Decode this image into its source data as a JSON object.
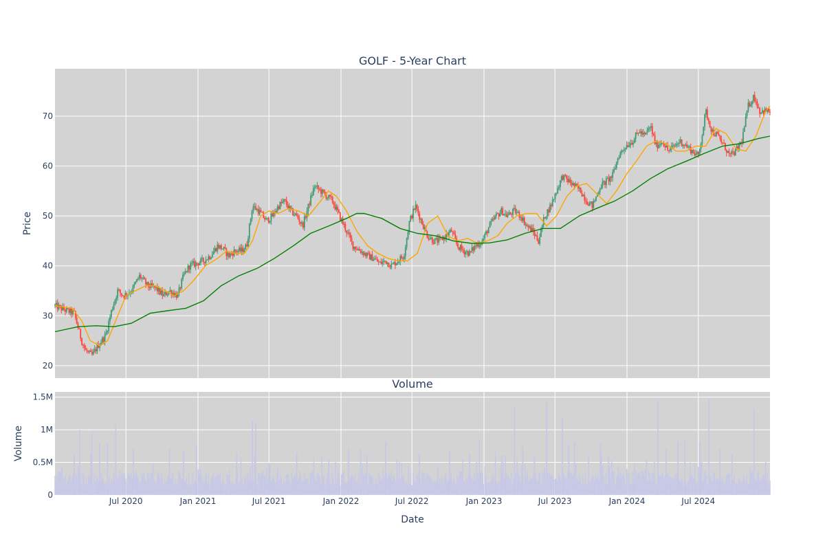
{
  "chart_data": [
    {
      "type": "candlestick",
      "title": "GOLF - 5-Year Chart",
      "ylabel": "Price",
      "ylim": [
        17.5,
        79.5
      ],
      "yticks": [
        20,
        30,
        40,
        50,
        60,
        70
      ],
      "xrange": [
        "2020-01-02",
        "2024-12-31"
      ],
      "grid": true,
      "legend": "none",
      "colors": {
        "up": "#3d9970",
        "down": "#ff4136",
        "ma_short": "#ffa500",
        "ma_long": "#008000",
        "background": "#d3d3d3"
      },
      "series": [
        {
          "name": "",
          "kind": "close_path",
          "x": [
            "2020-01-02",
            "2020-02-01",
            "2020-02-20",
            "2020-03-10",
            "2020-03-20",
            "2020-04-05",
            "2020-04-25",
            "2020-05-10",
            "2020-05-25",
            "2020-06-10",
            "2020-06-25",
            "2020-07-15",
            "2020-08-05",
            "2020-08-25",
            "2020-09-15",
            "2020-10-05",
            "2020-10-20",
            "2020-11-10",
            "2020-11-25",
            "2020-12-10",
            "2020-12-28",
            "2021-01-15",
            "2021-02-01",
            "2021-02-20",
            "2021-03-05",
            "2021-03-20",
            "2021-04-05",
            "2021-04-22",
            "2021-05-05",
            "2021-05-20",
            "2021-06-05",
            "2021-06-25",
            "2021-07-10",
            "2021-07-25",
            "2021-08-10",
            "2021-08-25",
            "2021-09-10",
            "2021-09-25",
            "2021-10-10",
            "2021-10-25",
            "2021-11-10",
            "2021-11-25",
            "2021-12-10",
            "2021-12-28",
            "2022-01-15",
            "2022-02-01",
            "2022-02-20",
            "2022-03-10",
            "2022-03-25",
            "2022-04-10",
            "2022-04-25",
            "2022-05-10",
            "2022-05-25",
            "2022-06-10",
            "2022-06-25",
            "2022-07-10",
            "2022-07-25",
            "2022-08-10",
            "2022-08-25",
            "2022-09-10",
            "2022-09-25",
            "2022-10-10",
            "2022-10-25",
            "2022-11-10",
            "2022-11-25",
            "2022-12-10",
            "2022-12-28",
            "2023-01-15",
            "2023-02-01",
            "2023-02-15",
            "2023-03-01",
            "2023-03-20",
            "2023-04-05",
            "2023-04-20",
            "2023-05-05",
            "2023-05-20",
            "2023-06-05",
            "2023-06-20",
            "2023-07-05",
            "2023-07-20",
            "2023-08-05",
            "2023-08-20",
            "2023-09-05",
            "2023-09-20",
            "2023-10-05",
            "2023-10-25",
            "2023-11-10",
            "2023-11-25",
            "2023-12-10",
            "2023-12-28",
            "2024-01-15",
            "2024-02-01",
            "2024-02-15",
            "2024-03-01",
            "2024-03-15",
            "2024-04-01",
            "2024-04-15",
            "2024-05-01",
            "2024-05-15",
            "2024-06-01",
            "2024-06-15",
            "2024-07-01",
            "2024-07-10",
            "2024-07-20",
            "2024-08-05",
            "2024-08-20",
            "2024-09-05",
            "2024-09-20",
            "2024-10-05",
            "2024-10-20",
            "2024-11-05",
            "2024-11-20",
            "2024-12-05",
            "2024-12-31"
          ],
          "values": [
            32,
            31,
            30.5,
            25,
            23,
            22,
            24.5,
            26,
            31,
            35,
            34,
            35,
            38,
            36,
            35.5,
            34,
            35,
            34,
            38,
            40,
            40.5,
            41,
            42,
            44,
            43.5,
            42,
            43,
            43,
            44,
            52,
            51,
            49,
            50,
            52,
            53,
            51,
            50,
            48,
            52,
            56,
            55,
            54,
            53,
            50,
            47,
            44,
            43,
            42,
            41.5,
            40.5,
            41,
            40,
            41,
            42,
            49,
            52,
            49,
            46,
            45,
            45,
            46,
            47,
            44,
            43,
            42.5,
            44,
            45,
            48,
            50,
            51,
            50,
            51,
            50,
            48,
            47,
            45,
            50,
            52,
            55,
            58,
            57,
            56,
            55,
            53,
            52,
            56,
            57,
            58,
            62,
            64,
            65,
            67,
            66,
            68,
            64,
            65,
            63,
            64,
            65,
            64,
            63,
            62,
            66,
            71,
            67,
            66,
            64,
            62,
            63,
            65,
            72,
            74,
            71,
            71
          ]
        },
        {
          "name": "",
          "kind": "moving_average_short",
          "x": [
            "2020-01-02",
            "2020-02-15",
            "2020-03-10",
            "2020-04-01",
            "2020-04-25",
            "2020-05-15",
            "2020-06-10",
            "2020-07-01",
            "2020-07-25",
            "2020-08-20",
            "2020-09-15",
            "2020-10-10",
            "2020-11-01",
            "2020-11-25",
            "2020-12-20",
            "2021-01-20",
            "2021-02-20",
            "2021-03-15",
            "2021-04-05",
            "2021-04-30",
            "2021-05-20",
            "2021-06-10",
            "2021-07-01",
            "2021-07-25",
            "2021-08-20",
            "2021-09-15",
            "2021-10-10",
            "2021-11-05",
            "2021-11-30",
            "2021-12-20",
            "2022-01-15",
            "2022-02-10",
            "2022-03-10",
            "2022-04-05",
            "2022-05-01",
            "2022-05-25",
            "2022-06-20",
            "2022-07-15",
            "2022-08-10",
            "2022-09-05",
            "2022-10-01",
            "2022-10-25",
            "2022-11-20",
            "2022-12-15",
            "2023-01-10",
            "2023-02-05",
            "2023-03-01",
            "2023-03-25",
            "2023-04-20",
            "2023-05-15",
            "2023-06-10",
            "2023-07-05",
            "2023-08-01",
            "2023-08-25",
            "2023-09-20",
            "2023-10-15",
            "2023-11-10",
            "2023-12-05",
            "2024-01-01",
            "2024-01-25",
            "2024-02-20",
            "2024-03-15",
            "2024-04-10",
            "2024-05-05",
            "2024-05-30",
            "2024-06-25",
            "2024-07-20",
            "2024-08-15",
            "2024-09-10",
            "2024-10-05",
            "2024-10-30",
            "2024-11-25",
            "2024-12-20",
            "2024-12-31"
          ],
          "values": [
            32,
            31.5,
            29,
            25,
            24,
            25,
            30,
            34,
            35,
            36,
            36,
            35,
            34,
            35,
            37,
            40,
            41.5,
            43,
            42.5,
            42.5,
            45,
            50,
            51,
            50.5,
            51.5,
            51,
            50,
            52.5,
            55,
            54,
            51,
            47,
            44,
            42.5,
            41.5,
            41,
            41,
            42.5,
            48.5,
            50,
            46,
            45,
            45.5,
            44.5,
            45,
            46,
            48.5,
            50,
            50.5,
            50.5,
            48,
            50,
            54,
            56,
            56.5,
            54.5,
            52.5,
            55,
            58.5,
            61,
            64,
            65,
            64.5,
            63,
            63,
            64,
            64,
            67.5,
            66.5,
            63.5,
            63,
            66,
            71,
            72
          ]
        },
        {
          "name": "",
          "kind": "moving_average_long",
          "x": [
            "2020-01-02",
            "2020-03-01",
            "2020-04-15",
            "2020-06-01",
            "2020-07-15",
            "2020-09-01",
            "2020-10-15",
            "2020-12-01",
            "2021-01-15",
            "2021-03-01",
            "2021-04-15",
            "2021-06-01",
            "2021-07-15",
            "2021-09-01",
            "2021-10-15",
            "2021-12-01",
            "2022-01-15",
            "2022-02-10",
            "2022-03-01",
            "2022-04-15",
            "2022-06-01",
            "2022-07-15",
            "2022-09-01",
            "2022-10-15",
            "2022-12-01",
            "2023-01-15",
            "2023-03-01",
            "2023-04-15",
            "2023-06-01",
            "2023-07-15",
            "2023-09-01",
            "2023-10-15",
            "2023-12-01",
            "2024-01-15",
            "2024-03-01",
            "2024-04-15",
            "2024-06-01",
            "2024-07-15",
            "2024-09-01",
            "2024-10-15",
            "2024-12-01",
            "2024-12-31"
          ],
          "values": [
            26.8,
            27.8,
            28,
            27.8,
            28.5,
            30.5,
            31,
            31.5,
            33,
            36,
            38,
            39.5,
            41.5,
            44,
            46.5,
            48,
            49.5,
            50.5,
            50.5,
            49.5,
            47.5,
            46.5,
            46,
            45,
            44.5,
            44.6,
            45.2,
            46.5,
            47.5,
            47.5,
            50,
            51.5,
            53,
            55,
            57.5,
            59.5,
            61,
            62.5,
            64,
            64.5,
            65.5,
            66
          ]
        }
      ]
    },
    {
      "type": "bar",
      "title": "Volume",
      "xlabel": "Date",
      "ylabel": "Volume",
      "ylim": [
        0,
        1580000
      ],
      "yticks": [
        0,
        500000,
        1000000,
        1500000
      ],
      "ytick_labels": [
        "0",
        "0.5M",
        "1M",
        "1.5M"
      ],
      "xticks": [
        "2020-07-01",
        "2021-01-01",
        "2021-07-01",
        "2022-01-01",
        "2022-07-01",
        "2023-01-01",
        "2023-07-01",
        "2024-01-01",
        "2024-07-01"
      ],
      "xtick_labels": [
        "Jul 2020",
        "Jan 2021",
        "Jul 2021",
        "Jan 2022",
        "Jul 2022",
        "Jan 2023",
        "Jul 2023",
        "Jan 2024",
        "Jul 2024"
      ],
      "colors": {
        "bar": "#c5c8e8",
        "background": "#d3d3d3"
      },
      "spikes": {
        "x": [
          "2020-02-20",
          "2020-03-05",
          "2020-04-05",
          "2020-04-25",
          "2020-05-15",
          "2020-06-05",
          "2020-07-20",
          "2020-10-20",
          "2020-11-25",
          "2020-12-28",
          "2021-04-10",
          "2021-05-20",
          "2021-05-28",
          "2021-07-01",
          "2021-09-10",
          "2021-12-01",
          "2022-01-20",
          "2022-02-20",
          "2022-04-25",
          "2022-07-20",
          "2022-09-05",
          "2022-10-05",
          "2022-11-25",
          "2022-12-20",
          "2023-01-30",
          "2023-02-15",
          "2023-03-20",
          "2023-04-10",
          "2023-05-10",
          "2023-06-10",
          "2023-07-20",
          "2023-08-05",
          "2023-08-20",
          "2023-09-25",
          "2023-10-25",
          "2023-11-15",
          "2023-12-10",
          "2024-01-20",
          "2024-02-20",
          "2024-03-20",
          "2024-04-10",
          "2024-05-10",
          "2024-05-28",
          "2024-07-05",
          "2024-07-28",
          "2024-08-25",
          "2024-09-25",
          "2024-11-10",
          "2024-11-20",
          "2024-12-20"
        ],
        "values": [
          610000,
          1000000,
          960000,
          800000,
          800000,
          1080000,
          700000,
          730000,
          690000,
          760000,
          650000,
          1150000,
          1100000,
          490000,
          650000,
          530000,
          710000,
          730000,
          820000,
          630000,
          410000,
          690000,
          640000,
          830000,
          660000,
          610000,
          1350000,
          750000,
          600000,
          1420000,
          1180000,
          780000,
          820000,
          590000,
          780000,
          600000,
          440000,
          460000,
          550000,
          1430000,
          700000,
          820000,
          850000,
          820000,
          1460000,
          700000,
          630000,
          430000,
          1330000,
          510000
        ]
      }
    }
  ]
}
